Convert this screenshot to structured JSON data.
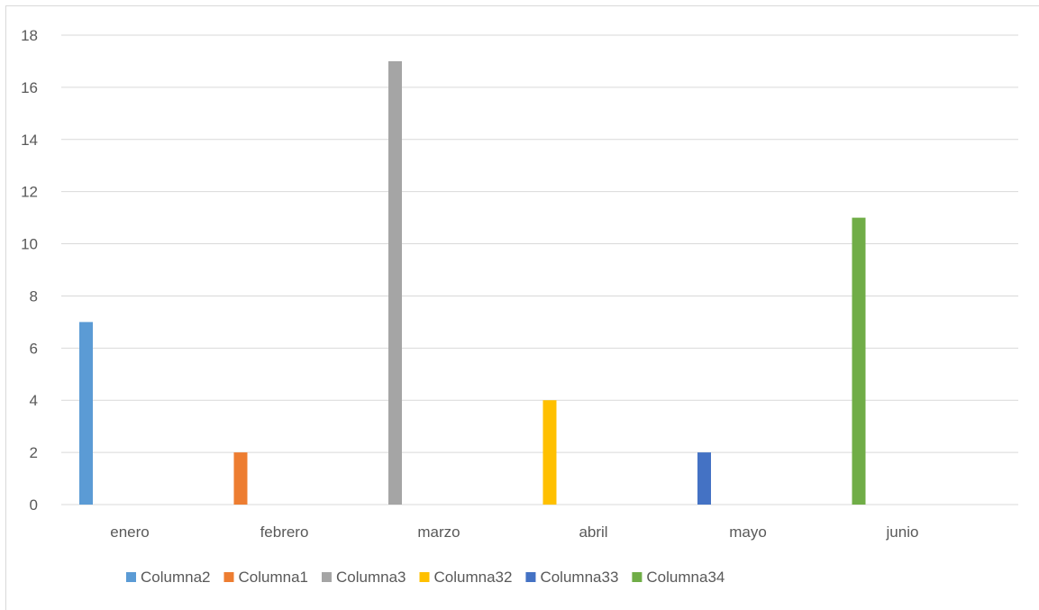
{
  "chart_data": {
    "type": "bar",
    "categories": [
      "enero",
      "febrero",
      "marzo",
      "abril",
      "mayo",
      "junio"
    ],
    "series": [
      {
        "name": "Columna2",
        "color": "#5b9bd5",
        "values": [
          7,
          null,
          null,
          null,
          null,
          null
        ]
      },
      {
        "name": "Columna1",
        "color": "#ed7d31",
        "values": [
          null,
          2,
          null,
          null,
          null,
          null
        ]
      },
      {
        "name": "Columna3",
        "color": "#a5a5a5",
        "values": [
          null,
          null,
          17,
          null,
          null,
          null
        ]
      },
      {
        "name": "Columna32",
        "color": "#ffc000",
        "values": [
          null,
          null,
          null,
          4,
          null,
          null
        ]
      },
      {
        "name": "Columna33",
        "color": "#4472c4",
        "values": [
          null,
          null,
          null,
          null,
          2,
          null
        ]
      },
      {
        "name": "Columna34",
        "color": "#70ad47",
        "values": [
          null,
          null,
          null,
          null,
          null,
          11
        ]
      }
    ],
    "ylim": [
      0,
      18
    ],
    "yticks": [
      "0",
      "2",
      "4",
      "6",
      "8",
      "10",
      "12",
      "14",
      "16",
      "18"
    ],
    "grid": true,
    "legend_position": "bottom"
  }
}
